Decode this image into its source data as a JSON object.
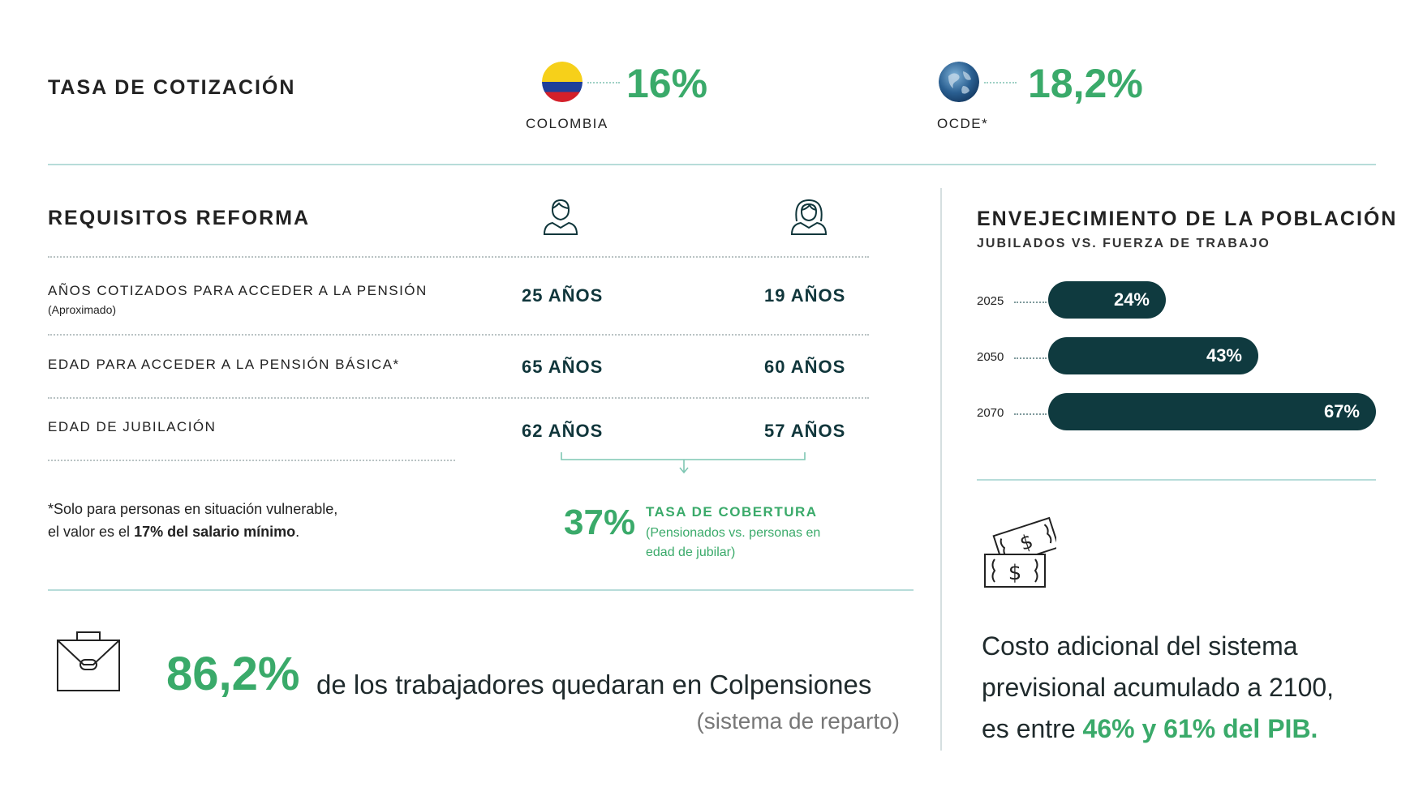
{
  "tasa": {
    "title": "TASA DE COTIZACIÓN",
    "colombia": {
      "label": "COLOMBIA",
      "value": "16%"
    },
    "ocde": {
      "label": "OCDE*",
      "value": "18,2%"
    }
  },
  "requisitos": {
    "title": "REQUISITOS REFORMA",
    "rows": [
      {
        "label": "AÑOS COTIZADOS PARA ACCEDER A LA PENSIÓN",
        "sub": "(Aproximado)",
        "hombre": "25 AÑOS",
        "mujer": "19 AÑOS"
      },
      {
        "label": "EDAD PARA ACCEDER A LA PENSIÓN BÁSICA*",
        "hombre": "65 AÑOS",
        "mujer": "60 AÑOS"
      },
      {
        "label": "EDAD DE JUBILACIÓN",
        "hombre": "62 AÑOS",
        "mujer": "57 AÑOS"
      }
    ],
    "note_line1": "*Solo para personas en situación vulnerable,",
    "note_line2_pre": "el valor es el ",
    "note_line2_bold": "17% del salario mínimo",
    "note_line2_post": "."
  },
  "cobertura": {
    "value": "37%",
    "title": "TASA DE COBERTURA",
    "desc": "(Pensionados vs. personas en edad de jubilar)"
  },
  "envejecimiento": {
    "title": "ENVEJECIMIENTO DE LA POBLACIÓN",
    "subtitle": "JUBILADOS VS. FUERZA DE TRABAJO",
    "bars": [
      {
        "year": "2025",
        "label": "24%",
        "value": 24
      },
      {
        "year": "2050",
        "label": "43%",
        "value": 43
      },
      {
        "year": "2070",
        "label": "67%",
        "value": 67
      }
    ]
  },
  "colpensiones": {
    "value": "86,2%",
    "text": "de los trabajadores quedaran en Colpensiones",
    "sub": "(sistema de reparto)"
  },
  "costo": {
    "line1": "Costo adicional del sistema",
    "line2": "previsional acumulado a 2100,",
    "line3_pre": "es entre ",
    "line3_highlight": "46% y 61% del PIB."
  },
  "colors": {
    "accent_green": "#3aaa6a",
    "dark_teal": "#0f3a3f",
    "divider": "#b7dcd9"
  },
  "icons": [
    "colombia-flag-icon",
    "globe-icon",
    "man-icon",
    "woman-icon",
    "money-icon",
    "briefcase-icon"
  ]
}
